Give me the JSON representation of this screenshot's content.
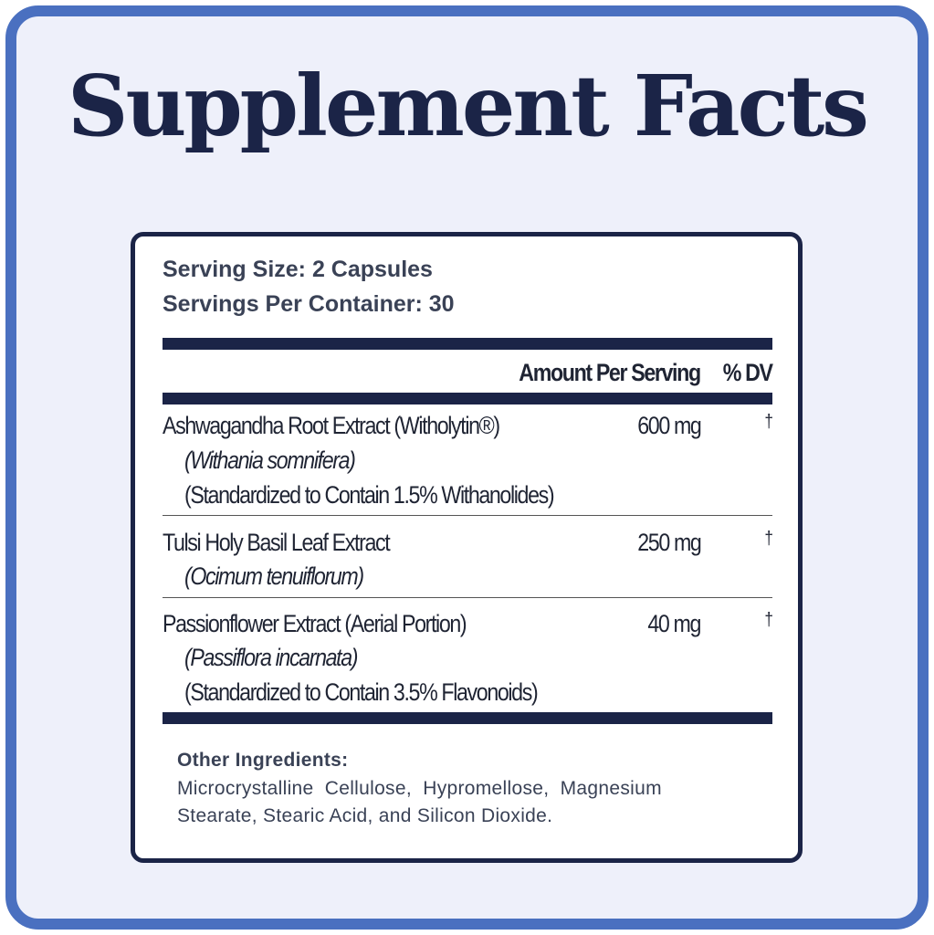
{
  "title": "Supplement Facts",
  "serving_size": "Serving Size: 2 Capsules",
  "servings_per_container": "Servings Per Container: 30",
  "header": {
    "amount": "Amount Per Serving",
    "dv": "% DV"
  },
  "rows": [
    {
      "name": "Ashwagandha Root Extract (Witholytin®)",
      "latin": "(Withania somnifera)",
      "note": "(Standardized to Contain 1.5% Withanolides)",
      "amount": "600 mg",
      "dv": "†"
    },
    {
      "name": "Tulsi Holy Basil Leaf Extract",
      "latin": "(Ocimum tenuiflorum)",
      "amount": "250 mg",
      "dv": "†"
    },
    {
      "name": "Passionflower Extract (Aerial Portion)",
      "latin": "(Passiflora incarnata)",
      "note": "(Standardized to Contain 3.5% Flavonoids)",
      "amount": "40 mg",
      "dv": "†"
    }
  ],
  "other": {
    "label": "Other Ingredients:",
    "line1": "Microcrystalline  Cellulose,  Hypromellose,  Magnesium",
    "line2": "Stearate, Stearic Acid, and Silicon Dioxide."
  },
  "colors": {
    "frame": "#4a70c0",
    "background": "#eef0fa",
    "navy": "#1b2447"
  }
}
